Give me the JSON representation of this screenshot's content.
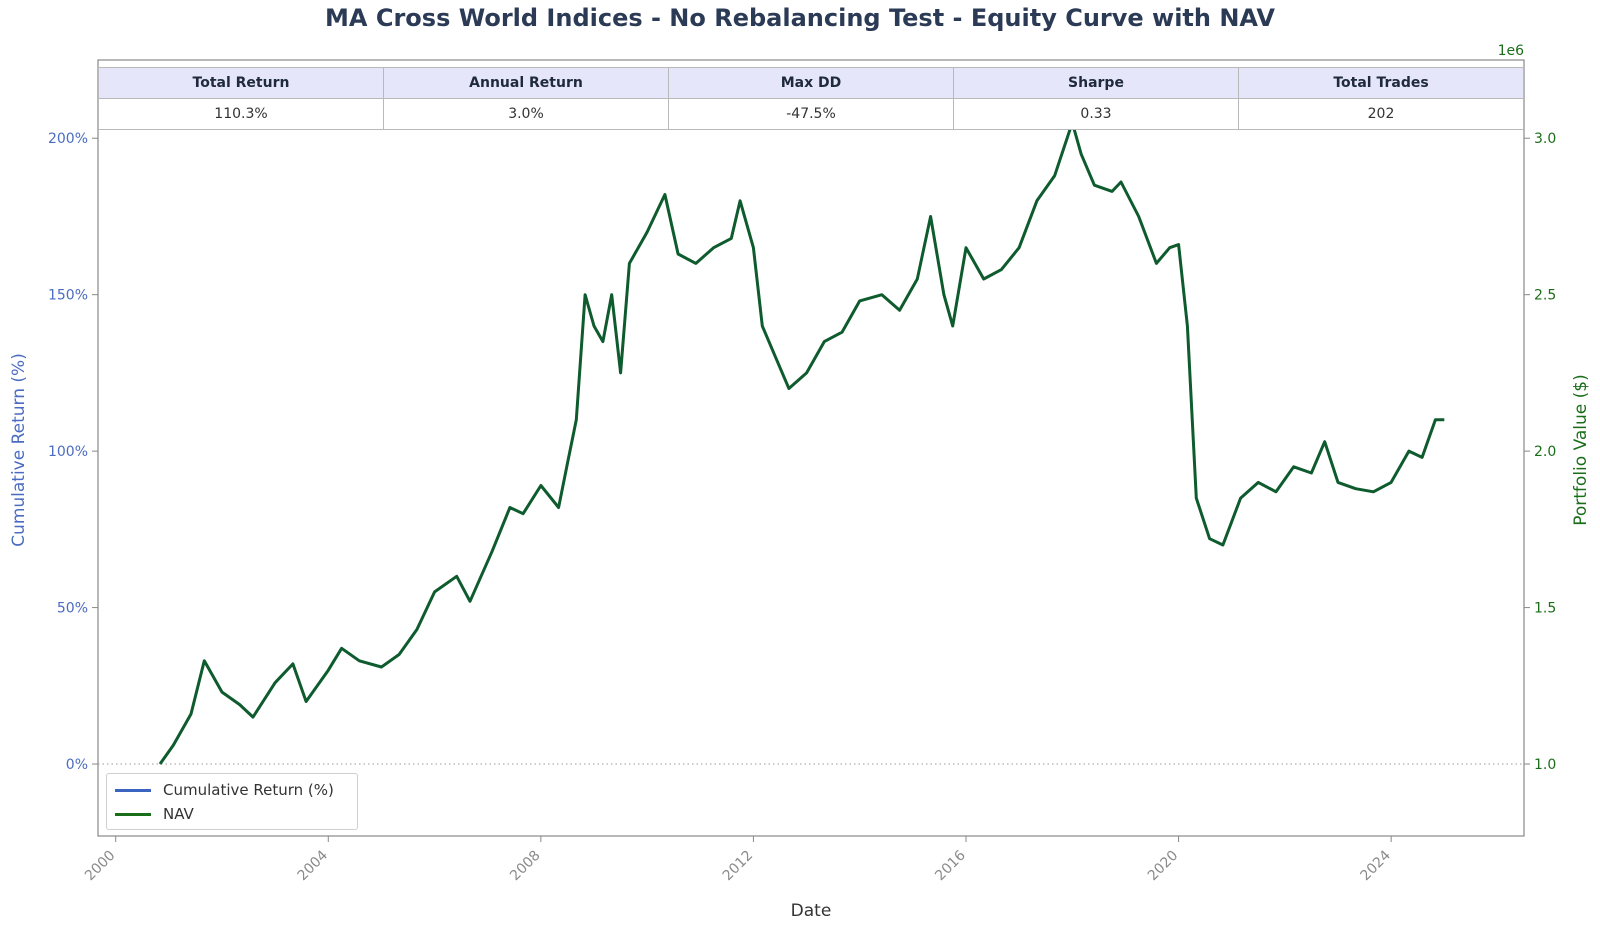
{
  "chart_data": {
    "type": "line",
    "title": "MA Cross World Indices - No Rebalancing Test - Equity Curve with NAV",
    "xlabel": "Date",
    "ylabel_left": "Cumulative Return (%)",
    "ylabel_right": "Portfolio Value ($)",
    "right_axis_multiplier": "1e6",
    "xlim": [
      "1999-09",
      "2026-07"
    ],
    "ylim_left": [
      -23,
      225
    ],
    "ylim_right": [
      0.77,
      3.25
    ],
    "grid": false,
    "legend_position": "lower-left",
    "x_ticks": [
      "2000",
      "2004",
      "2008",
      "2012",
      "2016",
      "2020",
      "2024"
    ],
    "y_left_ticks": [
      "0%",
      "50%",
      "100%",
      "150%",
      "200%"
    ],
    "y_right_ticks": [
      "1.0",
      "1.5",
      "2.0",
      "2.5",
      "3.0"
    ],
    "reference_line": {
      "y": 0,
      "style": "dotted",
      "color": "#999999"
    },
    "colors": {
      "nav": "#0e5b2e",
      "cumulative_return": "#3a64c0",
      "left_axis": "#4b6cc1",
      "right_axis": "#1a6e1a",
      "title": "#2b3a55"
    },
    "series": [
      {
        "name": "NAV",
        "x": [
          "2000-11",
          "2001-02",
          "2001-06",
          "2001-09",
          "2002-01",
          "2002-05",
          "2002-08",
          "2003-01",
          "2003-05",
          "2003-08",
          "2004-01",
          "2004-04",
          "2004-08",
          "2005-01",
          "2005-05",
          "2005-09",
          "2006-01",
          "2006-06",
          "2006-09",
          "2007-02",
          "2007-06",
          "2007-09",
          "2008-01",
          "2008-05",
          "2008-07",
          "2008-09",
          "2008-11",
          "2009-01",
          "2009-03",
          "2009-05",
          "2009-07",
          "2009-09",
          "2010-01",
          "2010-05",
          "2010-08",
          "2010-12",
          "2011-04",
          "2011-08",
          "2011-10",
          "2012-01",
          "2012-03",
          "2012-06",
          "2012-09",
          "2013-01",
          "2013-05",
          "2013-09",
          "2014-01",
          "2014-06",
          "2014-10",
          "2015-02",
          "2015-05",
          "2015-08",
          "2015-10",
          "2016-01",
          "2016-05",
          "2016-09",
          "2017-01",
          "2017-05",
          "2017-09",
          "2018-01",
          "2018-03",
          "2018-06",
          "2018-10",
          "2018-12",
          "2019-04",
          "2019-08",
          "2019-11",
          "2020-01",
          "2020-03",
          "2020-05",
          "2020-08",
          "2020-11",
          "2021-03",
          "2021-07",
          "2021-11",
          "2022-03",
          "2022-07",
          "2022-10",
          "2023-01",
          "2023-05",
          "2023-09",
          "2024-01",
          "2024-05",
          "2024-08",
          "2024-11",
          "2025-01"
        ],
        "values": [
          0,
          6,
          16,
          33,
          23,
          19,
          15,
          26,
          32,
          20,
          30,
          37,
          33,
          31,
          35,
          43,
          55,
          60,
          52,
          68,
          82,
          80,
          89,
          82,
          96,
          110,
          150,
          140,
          135,
          150,
          125,
          160,
          170,
          182,
          163,
          160,
          165,
          168,
          180,
          165,
          140,
          130,
          120,
          125,
          135,
          138,
          148,
          150,
          145,
          155,
          175,
          150,
          140,
          165,
          155,
          158,
          165,
          180,
          188,
          205,
          195,
          185,
          183,
          186,
          175,
          160,
          165,
          166,
          140,
          85,
          72,
          70,
          85,
          90,
          87,
          95,
          93,
          103,
          90,
          88,
          87,
          90,
          100,
          98,
          110,
          110
        ]
      },
      {
        "name": "Cumulative Return (%)"
      }
    ]
  },
  "stats_table": {
    "headers": [
      "Total Return",
      "Annual Return",
      "Max DD",
      "Sharpe",
      "Total Trades"
    ],
    "values": [
      "110.3%",
      "3.0%",
      "-47.5%",
      "0.33",
      "202"
    ]
  }
}
